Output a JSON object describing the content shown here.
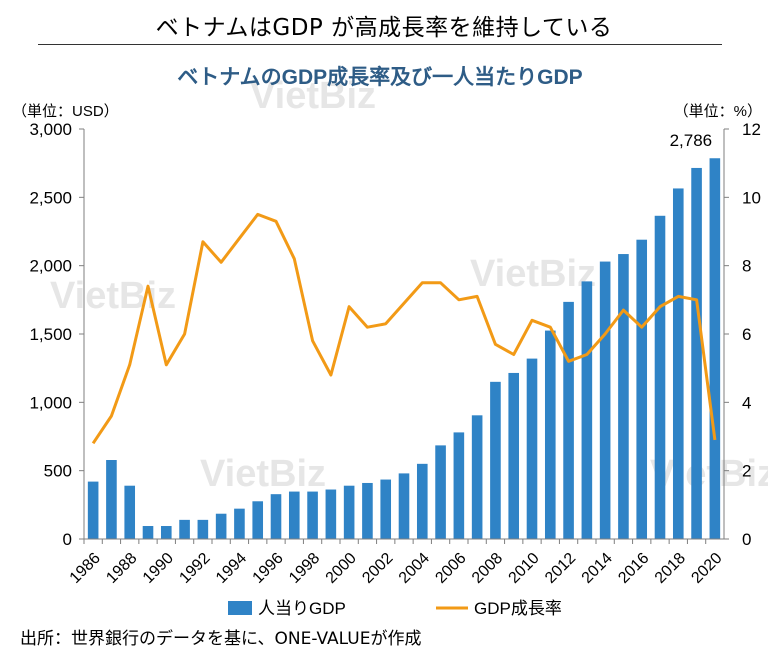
{
  "header": {
    "title": "ベトナムはGDP が高成長率を維持している"
  },
  "source": "出所：世界銀行のデータを基に、ONE-VALUEが作成",
  "watermark": "VietBiz",
  "colors": {
    "bar": "#2f83c6",
    "line": "#f29a16",
    "title": "#2e5c86",
    "axis": "#7f7f7f",
    "watermark": "#e6e6e6"
  },
  "chart_data": {
    "type": "bar+line",
    "title": "ベトナムのGDP成長率及び一人当たりGDP",
    "y_left_label": "（単位：USD）",
    "y_right_label": "（単位：%）",
    "y_left_range": [
      0,
      3000
    ],
    "y_left_ticks": [
      0,
      500,
      1000,
      1500,
      2000,
      2500,
      3000
    ],
    "y_left_tick_labels": [
      "0",
      "500",
      "1,000",
      "1,500",
      "2,000",
      "2,500",
      "3,000"
    ],
    "y_right_range": [
      0,
      12
    ],
    "y_right_ticks": [
      0,
      2,
      4,
      6,
      8,
      10,
      12
    ],
    "y_right_tick_labels": [
      "0",
      "2",
      "4",
      "6",
      "8",
      "10",
      "12"
    ],
    "categories": [
      1986,
      1987,
      1988,
      1989,
      1990,
      1991,
      1992,
      1993,
      1994,
      1995,
      1996,
      1997,
      1998,
      1999,
      2000,
      2001,
      2002,
      2003,
      2004,
      2005,
      2006,
      2007,
      2008,
      2009,
      2010,
      2011,
      2012,
      2013,
      2014,
      2015,
      2016,
      2017,
      2018,
      2019,
      2020
    ],
    "x_tick_labels": [
      "1986",
      "1988",
      "1990",
      "1992",
      "1994",
      "1996",
      "1998",
      "2000",
      "2002",
      "2004",
      "2006",
      "2008",
      "2010",
      "2012",
      "2014",
      "2016",
      "2018",
      "2020"
    ],
    "series": [
      {
        "name": "人当りGDP",
        "type": "bar",
        "axis": "left",
        "values": [
          420,
          578,
          390,
          95,
          95,
          140,
          140,
          185,
          222,
          276,
          328,
          347,
          347,
          362,
          390,
          410,
          435,
          480,
          550,
          685,
          780,
          905,
          1150,
          1215,
          1320,
          1525,
          1735,
          1885,
          2030,
          2085,
          2190,
          2365,
          2565,
          2715,
          2786
        ]
      },
      {
        "name": "GDP成長率",
        "type": "line",
        "axis": "right",
        "values": [
          2.8,
          3.6,
          5.1,
          7.4,
          5.1,
          6.0,
          8.7,
          8.1,
          8.8,
          9.5,
          9.3,
          8.2,
          5.8,
          4.8,
          6.8,
          6.2,
          6.3,
          6.9,
          7.5,
          7.5,
          7.0,
          7.1,
          5.7,
          5.4,
          6.4,
          6.2,
          5.2,
          5.4,
          6.0,
          6.7,
          6.2,
          6.8,
          7.1,
          7.0,
          2.9
        ]
      }
    ],
    "annotations": [
      {
        "text": "2,786",
        "category": 2020
      }
    ],
    "legend": "bottom",
    "grid": false
  }
}
